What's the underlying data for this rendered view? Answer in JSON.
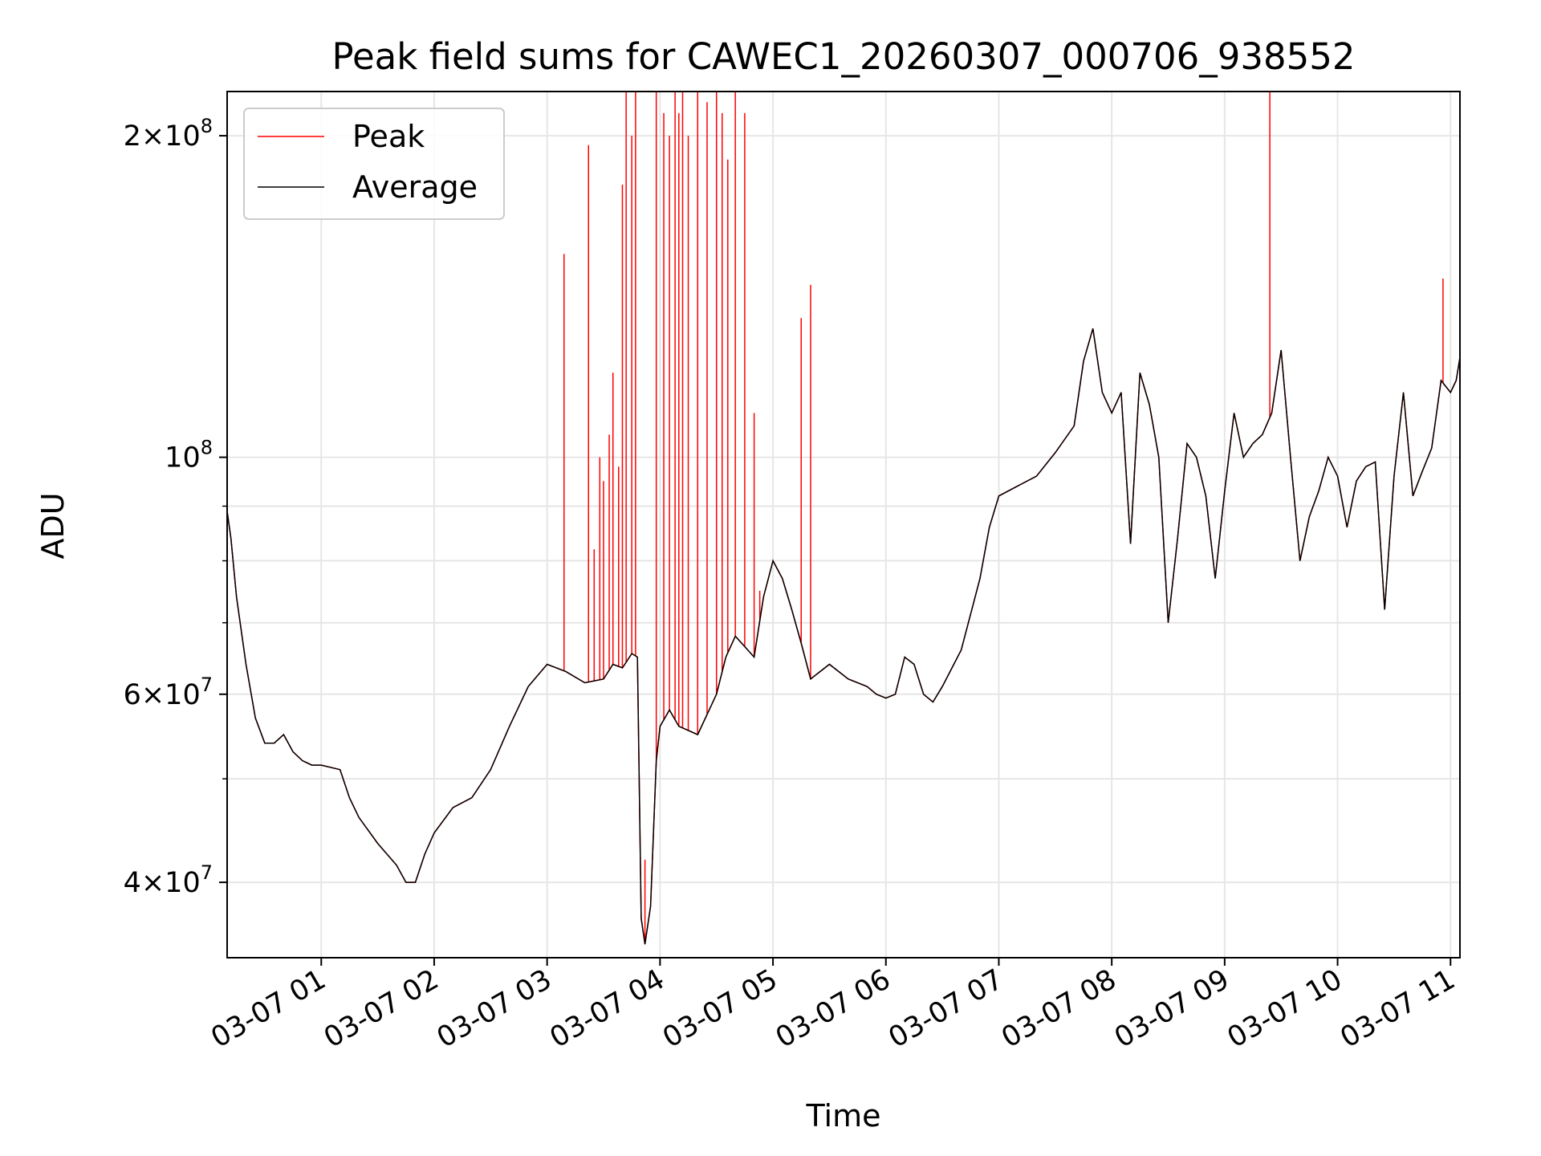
{
  "chart_data": {
    "type": "line",
    "title": "Peak field sums for CAWEC1_20260307_000706_938552",
    "xlabel": "Time",
    "ylabel": "ADU",
    "yscale": "log",
    "ylim": [
      34000000,
      220000000
    ],
    "xlim": [
      "03-07 00:10",
      "03-07 11:05"
    ],
    "grid": true,
    "legend": {
      "position": "upper-left",
      "entries": [
        "Peak",
        "Average"
      ]
    },
    "x_ticks": [
      "03-07 01",
      "03-07 02",
      "03-07 03",
      "03-07 04",
      "03-07 05",
      "03-07 06",
      "03-07 07",
      "03-07 08",
      "03-07 09",
      "03-07 10",
      "03-07 11"
    ],
    "y_ticks": [
      {
        "value": 40000000,
        "base": "4",
        "exp": "7"
      },
      {
        "value": 60000000,
        "base": "6",
        "exp": "7"
      },
      {
        "value": 100000000,
        "base": "10",
        "exp": "8"
      },
      {
        "value": 200000000,
        "base": "2",
        "exp": "8"
      }
    ],
    "colors": {
      "Peak": "#ff0000",
      "Average": "#000000"
    },
    "series": [
      {
        "name": "Average",
        "x": [
          "03-07 00:10",
          "03-07 00:12",
          "03-07 00:15",
          "03-07 00:20",
          "03-07 00:25",
          "03-07 00:30",
          "03-07 00:35",
          "03-07 00:40",
          "03-07 00:45",
          "03-07 00:50",
          "03-07 00:55",
          "03-07 01:00",
          "03-07 01:10",
          "03-07 01:15",
          "03-07 01:20",
          "03-07 01:30",
          "03-07 01:40",
          "03-07 01:45",
          "03-07 01:50",
          "03-07 01:55",
          "03-07 02:00",
          "03-07 02:10",
          "03-07 02:20",
          "03-07 02:30",
          "03-07 02:40",
          "03-07 02:50",
          "03-07 03:00",
          "03-07 03:10",
          "03-07 03:20",
          "03-07 03:30",
          "03-07 03:35",
          "03-07 03:40",
          "03-07 03:45",
          "03-07 03:48",
          "03-07 03:50",
          "03-07 03:52",
          "03-07 03:55",
          "03-07 03:58",
          "03-07 04:00",
          "03-07 04:05",
          "03-07 04:10",
          "03-07 04:20",
          "03-07 04:30",
          "03-07 04:35",
          "03-07 04:40",
          "03-07 04:50",
          "03-07 04:55",
          "03-07 05:00",
          "03-07 05:05",
          "03-07 05:10",
          "03-07 05:15",
          "03-07 05:20",
          "03-07 05:25",
          "03-07 05:30",
          "03-07 05:40",
          "03-07 05:50",
          "03-07 05:55",
          "03-07 06:00",
          "03-07 06:05",
          "03-07 06:10",
          "03-07 06:15",
          "03-07 06:20",
          "03-07 06:25",
          "03-07 06:30",
          "03-07 06:40",
          "03-07 06:50",
          "03-07 06:55",
          "03-07 07:00",
          "03-07 07:10",
          "03-07 07:20",
          "03-07 07:30",
          "03-07 07:40",
          "03-07 07:45",
          "03-07 07:50",
          "03-07 07:55",
          "03-07 08:00",
          "03-07 08:05",
          "03-07 08:10",
          "03-07 08:15",
          "03-07 08:20",
          "03-07 08:25",
          "03-07 08:30",
          "03-07 08:35",
          "03-07 08:40",
          "03-07 08:45",
          "03-07 08:50",
          "03-07 08:55",
          "03-07 09:00",
          "03-07 09:05",
          "03-07 09:10",
          "03-07 09:15",
          "03-07 09:20",
          "03-07 09:25",
          "03-07 09:30",
          "03-07 09:35",
          "03-07 09:40",
          "03-07 09:45",
          "03-07 09:50",
          "03-07 09:55",
          "03-07 10:00",
          "03-07 10:05",
          "03-07 10:10",
          "03-07 10:15",
          "03-07 10:20",
          "03-07 10:25",
          "03-07 10:30",
          "03-07 10:35",
          "03-07 10:40",
          "03-07 10:45",
          "03-07 10:50",
          "03-07 10:55",
          "03-07 11:00",
          "03-07 11:03",
          "03-07 11:05"
        ],
        "values": [
          89000000,
          84000000,
          74000000,
          64000000,
          57000000,
          54000000,
          54000000,
          55000000,
          53000000,
          52000000,
          51500000,
          51500000,
          51000000,
          48000000,
          46000000,
          43500000,
          41500000,
          40000000,
          40000000,
          42500000,
          44500000,
          47000000,
          48000000,
          51000000,
          56000000,
          61000000,
          64000000,
          63000000,
          61500000,
          62000000,
          64000000,
          63500000,
          65500000,
          65000000,
          37000000,
          35000000,
          38000000,
          52000000,
          56000000,
          58000000,
          56000000,
          55000000,
          60000000,
          65000000,
          68000000,
          65000000,
          74000000,
          80000000,
          77000000,
          72000000,
          67000000,
          62000000,
          63000000,
          64000000,
          62000000,
          61000000,
          60000000,
          59500000,
          60000000,
          65000000,
          64000000,
          60000000,
          59000000,
          61000000,
          66000000,
          77000000,
          86000000,
          92000000,
          94000000,
          96000000,
          101000000,
          107000000,
          123000000,
          132000000,
          115000000,
          110000000,
          115000000,
          83000000,
          120000000,
          112000000,
          100000000,
          70000000,
          84000000,
          103000000,
          100000000,
          92000000,
          77000000,
          93000000,
          110000000,
          100000000,
          103000000,
          105000000,
          110000000,
          126000000,
          100000000,
          80000000,
          88000000,
          93000000,
          100000000,
          96000000,
          86000000,
          95000000,
          98000000,
          99000000,
          72000000,
          96000000,
          115000000,
          92000000,
          97000000,
          102000000,
          118000000,
          115000000,
          118000000,
          124000000
        ]
      },
      {
        "name": "Peak",
        "spikes": [
          {
            "x": "03-07 03:09",
            "value": 155000000
          },
          {
            "x": "03-07 03:22",
            "value": 196000000
          },
          {
            "x": "03-07 03:25",
            "value": 82000000
          },
          {
            "x": "03-07 03:28",
            "value": 100000000
          },
          {
            "x": "03-07 03:30",
            "value": 95000000
          },
          {
            "x": "03-07 03:33",
            "value": 105000000
          },
          {
            "x": "03-07 03:35",
            "value": 120000000
          },
          {
            "x": "03-07 03:38",
            "value": 98000000
          },
          {
            "x": "03-07 03:40",
            "value": 180000000
          },
          {
            "x": "03-07 03:42",
            "value": 220000000
          },
          {
            "x": "03-07 03:45",
            "value": 200000000
          },
          {
            "x": "03-07 03:47",
            "value": 220000000
          },
          {
            "x": "03-07 03:52",
            "value": 42000000
          },
          {
            "x": "03-07 03:58",
            "value": 220000000
          },
          {
            "x": "03-07 04:02",
            "value": 210000000
          },
          {
            "x": "03-07 04:05",
            "value": 200000000
          },
          {
            "x": "03-07 04:08",
            "value": 220000000
          },
          {
            "x": "03-07 04:10",
            "value": 210000000
          },
          {
            "x": "03-07 04:12",
            "value": 220000000
          },
          {
            "x": "03-07 04:15",
            "value": 200000000
          },
          {
            "x": "03-07 04:20",
            "value": 220000000
          },
          {
            "x": "03-07 04:25",
            "value": 215000000
          },
          {
            "x": "03-07 04:30",
            "value": 220000000
          },
          {
            "x": "03-07 04:33",
            "value": 210000000
          },
          {
            "x": "03-07 04:36",
            "value": 190000000
          },
          {
            "x": "03-07 04:40",
            "value": 220000000
          },
          {
            "x": "03-07 04:45",
            "value": 210000000
          },
          {
            "x": "03-07 04:50",
            "value": 110000000
          },
          {
            "x": "03-07 04:53",
            "value": 75000000
          },
          {
            "x": "03-07 05:15",
            "value": 135000000
          },
          {
            "x": "03-07 05:20",
            "value": 145000000
          },
          {
            "x": "03-07 09:24",
            "value": 220000000
          },
          {
            "x": "03-07 10:56",
            "value": 147000000
          }
        ]
      }
    ]
  }
}
